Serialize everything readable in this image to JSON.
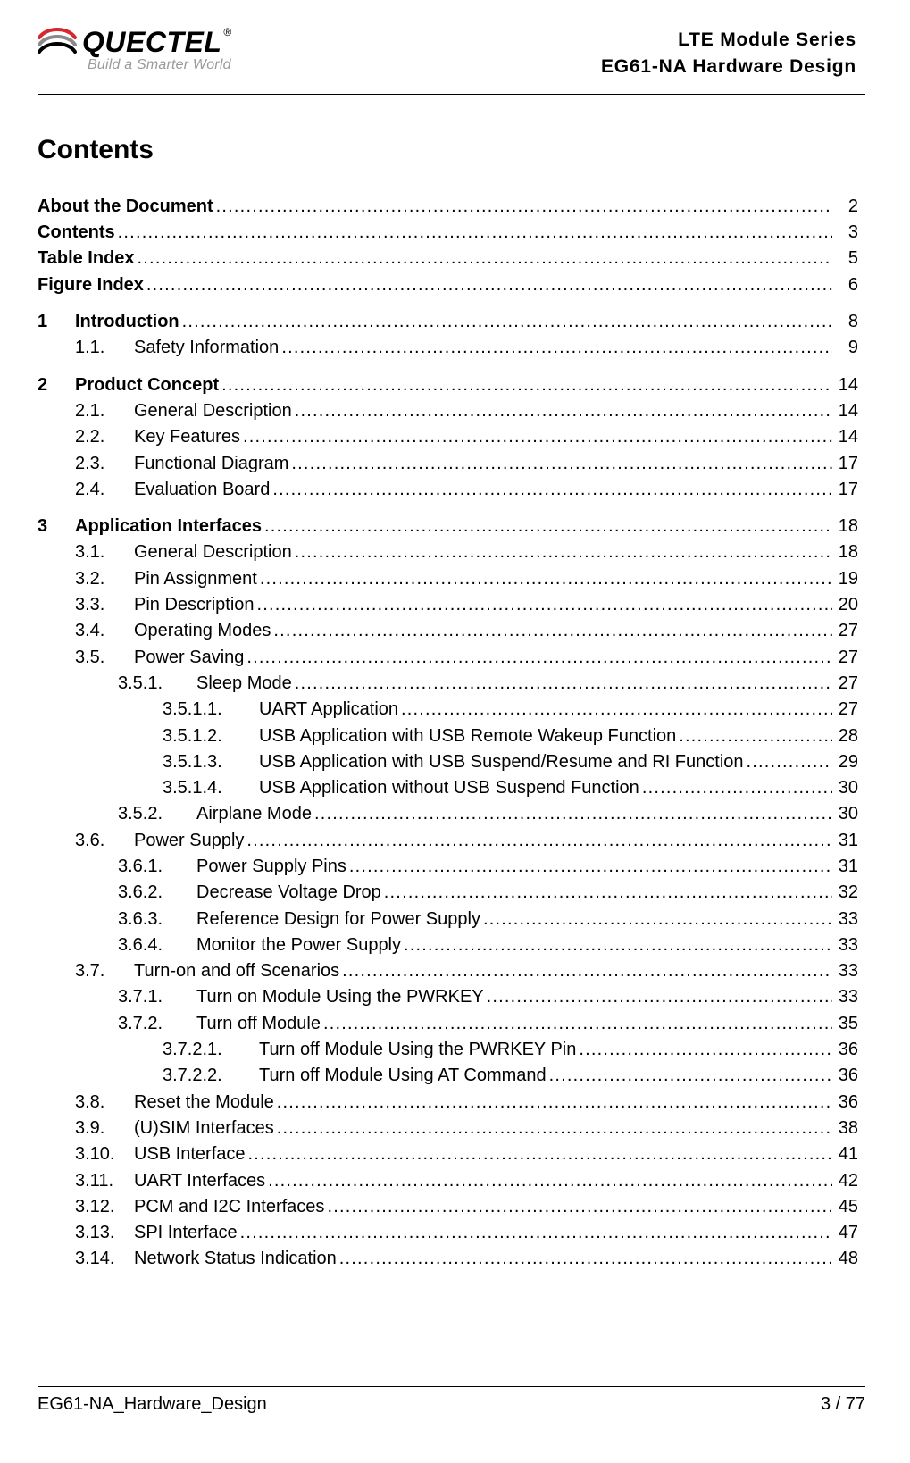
{
  "header": {
    "brand_text": "QUECTEL",
    "registered": "®",
    "tagline": "Build a Smarter World",
    "right_line1": "LTE  Module  Series",
    "right_line2": "EG61-NA  Hardware  Design",
    "logo_colors": {
      "swoosh_red": "#d9272e",
      "swoosh_gray": "#8a8a8a",
      "swoosh_black": "#000000"
    }
  },
  "contents_title": "Contents",
  "toc": [
    {
      "level": 0,
      "bold": true,
      "num": "",
      "label": "About the Document",
      "page": "2"
    },
    {
      "level": 0,
      "bold": true,
      "num": "",
      "label": "Contents",
      "page": "3"
    },
    {
      "level": 0,
      "bold": true,
      "num": "",
      "label": "Table Index ",
      "page": "5"
    },
    {
      "level": 0,
      "bold": true,
      "num": "",
      "label": "Figure Index",
      "page": "6"
    },
    {
      "gap": true
    },
    {
      "level": 1,
      "bold": true,
      "num": "1",
      "label": "Introduction ",
      "page": "8"
    },
    {
      "level": 2,
      "bold": false,
      "num": "1.1.",
      "label": "Safety Information",
      "page": "9"
    },
    {
      "gap": true
    },
    {
      "level": 1,
      "bold": true,
      "num": "2",
      "label": "Product Concept ",
      "page": "14"
    },
    {
      "level": 2,
      "bold": false,
      "num": "2.1.",
      "label": "General Description ",
      "page": "14"
    },
    {
      "level": 2,
      "bold": false,
      "num": "2.2.",
      "label": "Key Features",
      "page": "14"
    },
    {
      "level": 2,
      "bold": false,
      "num": "2.3.",
      "label": "Functional Diagram",
      "page": "17"
    },
    {
      "level": 2,
      "bold": false,
      "num": "2.4.",
      "label": "Evaluation Board",
      "page": "17"
    },
    {
      "gap": true
    },
    {
      "level": 1,
      "bold": true,
      "num": "3",
      "label": "Application Interfaces",
      "page": "18"
    },
    {
      "level": 2,
      "bold": false,
      "num": "3.1.",
      "label": "General Description ",
      "page": "18"
    },
    {
      "level": 2,
      "bold": false,
      "num": "3.2.",
      "label": "Pin Assignment ",
      "page": "19"
    },
    {
      "level": 2,
      "bold": false,
      "num": "3.3.",
      "label": "Pin Description",
      "page": "20"
    },
    {
      "level": 2,
      "bold": false,
      "num": "3.4.",
      "label": "Operating Modes ",
      "page": "27"
    },
    {
      "level": 2,
      "bold": false,
      "num": "3.5.",
      "label": "Power Saving",
      "page": "27"
    },
    {
      "level": 3,
      "bold": false,
      "num": "3.5.1.",
      "label": "Sleep Mode",
      "page": "27"
    },
    {
      "level": 4,
      "bold": false,
      "num": "3.5.1.1.",
      "label": "UART Application",
      "page": "27"
    },
    {
      "level": 4,
      "bold": false,
      "num": "3.5.1.2.",
      "label": "USB Application with USB Remote Wakeup Function ",
      "page": "28"
    },
    {
      "level": 4,
      "bold": false,
      "num": "3.5.1.3.",
      "label": "USB Application with USB Suspend/Resume and RI Function",
      "page": "29"
    },
    {
      "level": 4,
      "bold": false,
      "num": "3.5.1.4.",
      "label": "USB Application without USB Suspend Function",
      "page": "30"
    },
    {
      "level": 3,
      "bold": false,
      "num": "3.5.2.",
      "label": "Airplane Mode",
      "page": "30"
    },
    {
      "level": 2,
      "bold": false,
      "num": "3.6.",
      "label": "Power Supply",
      "page": "31"
    },
    {
      "level": 3,
      "bold": false,
      "num": "3.6.1.",
      "label": "Power Supply Pins",
      "page": "31"
    },
    {
      "level": 3,
      "bold": false,
      "num": "3.6.2.",
      "label": "Decrease Voltage Drop",
      "page": "32"
    },
    {
      "level": 3,
      "bold": false,
      "num": "3.6.3.",
      "label": "Reference Design for Power Supply",
      "page": "33"
    },
    {
      "level": 3,
      "bold": false,
      "num": "3.6.4.",
      "label": "Monitor the Power Supply",
      "page": "33"
    },
    {
      "level": 2,
      "bold": false,
      "num": "3.7.",
      "label": "Turn-on and off Scenarios",
      "page": "33"
    },
    {
      "level": 3,
      "bold": false,
      "num": "3.7.1.",
      "label": "Turn on Module Using the PWRKEY ",
      "page": "33"
    },
    {
      "level": 3,
      "bold": false,
      "num": "3.7.2.",
      "label": "Turn off Module",
      "page": "35"
    },
    {
      "level": 4,
      "bold": false,
      "num": "3.7.2.1.",
      "label": "Turn off Module Using the PWRKEY Pin ",
      "page": "36"
    },
    {
      "level": 4,
      "bold": false,
      "num": "3.7.2.2.",
      "label": "Turn off Module Using AT Command ",
      "page": "36"
    },
    {
      "level": 2,
      "bold": false,
      "num": "3.8.",
      "label": "Reset the Module",
      "page": "36"
    },
    {
      "level": 2,
      "bold": false,
      "num": "3.9.",
      "label": "(U)SIM Interfaces",
      "page": "38"
    },
    {
      "level": 2,
      "bold": false,
      "num": "3.10.",
      "label": "USB Interface",
      "page": "41"
    },
    {
      "level": 2,
      "bold": false,
      "num": "3.11.",
      "label": "UART Interfaces",
      "page": "42"
    },
    {
      "level": 2,
      "bold": false,
      "num": "3.12.",
      "label": "PCM and I2C Interfaces",
      "page": "45"
    },
    {
      "level": 2,
      "bold": false,
      "num": "3.13.",
      "label": "SPI Interface ",
      "page": "47"
    },
    {
      "level": 2,
      "bold": false,
      "num": "3.14.",
      "label": "Network Status Indication ",
      "page": "48"
    }
  ],
  "footer": {
    "left": "EG61-NA_Hardware_Design",
    "right": "3 / 77"
  }
}
